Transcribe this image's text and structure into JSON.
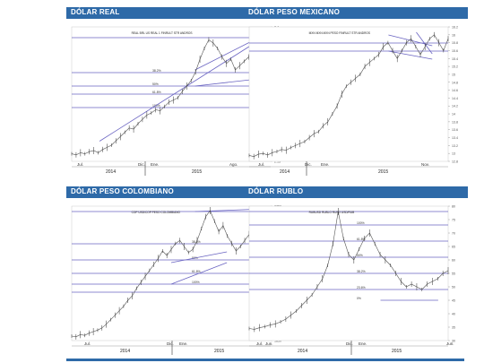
{
  "panels": [
    {
      "title": "DÓLAR REAL",
      "note": "REAL BRL US REAL 1 FINRULT STR ANDROS",
      "y_ticks": [
        "3.4",
        "3.35",
        "3.3",
        "3.25",
        "3.2",
        "3.15",
        "3.1",
        "3.05",
        "3.0",
        "2.95",
        "2.9",
        "2.85",
        "2.8",
        "2.75",
        "2.7",
        "2.65",
        "2.6",
        "2.55",
        "2.5",
        "2.45",
        "2.4",
        "2.35",
        "2.3",
        "2.25",
        "2.2",
        "2.15"
      ],
      "months": [
        "Jul.",
        "Dic.",
        "Ene.",
        "Ago."
      ],
      "years": [
        "2014",
        "2015"
      ],
      "fib_labels": [
        "38.2%",
        "50%",
        "61.8%",
        "100%"
      ],
      "colors": {
        "price": "#555555",
        "line": "#6a64c2"
      },
      "chart_data": {
        "type": "line",
        "x_start": "2014-06",
        "x_end": "2015-08",
        "values": [
          2.22,
          2.21,
          2.23,
          2.22,
          2.24,
          2.25,
          2.23,
          2.26,
          2.28,
          2.3,
          2.34,
          2.38,
          2.42,
          2.46,
          2.45,
          2.5,
          2.54,
          2.58,
          2.6,
          2.63,
          2.62,
          2.66,
          2.7,
          2.72,
          2.74,
          2.8,
          2.85,
          2.9,
          2.98,
          3.1,
          3.2,
          3.28,
          3.25,
          3.2,
          3.12,
          3.06,
          3.1,
          3.0,
          3.04,
          3.08,
          3.12,
          3.15,
          3.2,
          3.16,
          3.12,
          3.1
        ],
        "ylim": [
          2.15,
          3.4
        ]
      }
    },
    {
      "title": "DÓLAR PESO MEXICANO",
      "note": "MXN MXN MXN PESO FINRULT STR ANDROS",
      "y_ticks": [
        "16.2",
        "16",
        "15.8",
        "15.6",
        "15.4",
        "15.2",
        "15",
        "14.8",
        "14.6",
        "14.4",
        "14.2",
        "14",
        "13.8",
        "13.6",
        "13.4",
        "13.2",
        "13",
        "12.8"
      ],
      "months": [
        "Jul.",
        "Dic.",
        "Ene.",
        "Nov."
      ],
      "years": [
        "2014",
        "2015"
      ],
      "fib_labels": [],
      "colors": {
        "price": "#555555",
        "line": "#6a64c2"
      },
      "chart_data": {
        "type": "line",
        "x_start": "2014-06",
        "x_end": "2015-11",
        "values": [
          12.95,
          12.92,
          12.98,
          13.0,
          12.96,
          13.02,
          13.05,
          13.1,
          13.08,
          13.15,
          13.2,
          13.25,
          13.3,
          13.4,
          13.5,
          13.55,
          13.7,
          13.8,
          14.0,
          14.2,
          14.5,
          14.7,
          14.8,
          14.9,
          15.0,
          15.2,
          15.3,
          15.4,
          15.5,
          15.7,
          15.8,
          15.6,
          15.4,
          15.6,
          15.8,
          15.9,
          15.7,
          15.5,
          15.7,
          15.9,
          16.0,
          15.8,
          15.6,
          15.9
        ],
        "ylim": [
          12.8,
          16.2
        ]
      }
    },
    {
      "title": "DÓLAR PESO COLOMBIANO",
      "note": "COP USD/COP PESO COLOMBIANO",
      "y_ticks": [
        "2750",
        "2700",
        "2650",
        "2600",
        "2550",
        "2500",
        "2450",
        "2400",
        "2350",
        "2300",
        "2250",
        "2200",
        "2150",
        "2100",
        "2050",
        "2000",
        "1950",
        "1900",
        "1850"
      ],
      "months": [
        "Jul.",
        "Dic.",
        "Ene.",
        "Jun."
      ],
      "years": [
        "2014",
        "2015"
      ],
      "fib_labels": [
        "38.2%",
        "50%",
        "61.8%",
        "100%"
      ],
      "colors": {
        "price": "#555555",
        "line": "#6a64c2"
      },
      "chart_data": {
        "type": "line",
        "x_start": "2014-06",
        "x_end": "2015-06",
        "values": [
          1880,
          1875,
          1890,
          1885,
          1900,
          1910,
          1920,
          1935,
          1960,
          1990,
          2020,
          2050,
          2080,
          2120,
          2150,
          2200,
          2240,
          2280,
          2320,
          2360,
          2400,
          2450,
          2420,
          2460,
          2500,
          2520,
          2480,
          2440,
          2460,
          2520,
          2600,
          2680,
          2720,
          2650,
          2580,
          2620,
          2550,
          2500,
          2450,
          2480,
          2520,
          2560,
          2600,
          2540,
          2500,
          2560,
          2620
        ],
        "ylim": [
          1850,
          2750
        ]
      }
    },
    {
      "title": "DÓLAR RUBLO",
      "note": "RUBUSD RUBLO RUSO USD/RUB",
      "y_ticks": [
        "80",
        "75",
        "70",
        "65",
        "60",
        "55",
        "50",
        "45",
        "40",
        "35",
        "30"
      ],
      "months": [
        "Jul.",
        "Dic.",
        "Ene.",
        "Jun."
      ],
      "years": [
        "2014",
        "2015"
      ],
      "fib_labels": [
        "100%",
        "61.8%",
        "50%",
        "38.2%",
        "23.6%",
        "0%"
      ],
      "colors": {
        "price": "#555555",
        "line": "#6a64c2"
      },
      "chart_data": {
        "type": "line",
        "x_start": "2014-06",
        "x_end": "2015-06",
        "values": [
          34.5,
          34.2,
          34.8,
          35.2,
          35.8,
          36.2,
          37.0,
          38.0,
          39.5,
          41.0,
          43.0,
          45.0,
          47.0,
          50.0,
          53.0,
          58.0,
          66.0,
          78.0,
          68.0,
          62.0,
          60.0,
          64.0,
          68.0,
          70.0,
          66.0,
          62.0,
          60.0,
          58.0,
          55.0,
          52.0,
          50.0,
          51.0,
          50.0,
          49.0,
          51.0,
          52.0,
          53.0,
          55.0,
          56.0
        ],
        "ylim": [
          30,
          80
        ]
      }
    }
  ]
}
